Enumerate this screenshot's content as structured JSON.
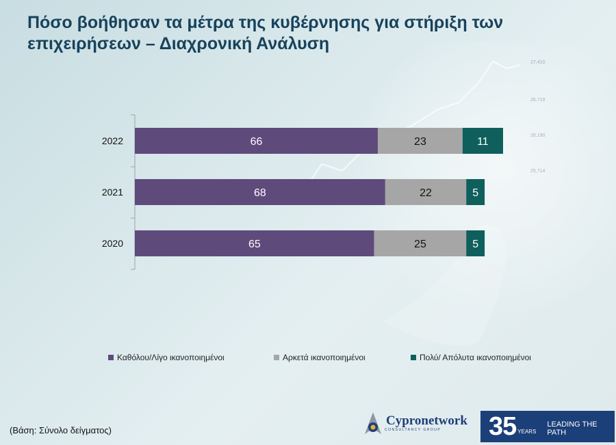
{
  "title": "Πόσο βοήθησαν τα μέτρα της κυβέρνησης για στήριξη των επιχειρήσεων – Διαχρονική Ανάλυση",
  "footnote": "(Βάση: Σύνολο δείγματος)",
  "logo": {
    "name": "Cypronetwork",
    "sub": "CONSULTANCY GROUP"
  },
  "badge": {
    "number": "35",
    "years": "YEARS",
    "tagline": "LEADING THE PATH"
  },
  "background_numbers": [
    "27,410",
    "26,719",
    "26,190",
    "25,714"
  ],
  "colors": {
    "series1": "#5f4a7c",
    "series2": "#a6a6a6",
    "series3": "#0f5f5c",
    "title": "#17425c"
  },
  "chart_data": {
    "type": "bar",
    "orientation": "horizontal",
    "stacked": true,
    "categories": [
      "2022",
      "2021",
      "2020"
    ],
    "series": [
      {
        "name": "Καθόλου/Λίγο ικανοποιημένοι",
        "values": [
          66,
          68,
          65
        ],
        "color": "#5f4a7c"
      },
      {
        "name": "Αρκετά ικανοποιημένοι",
        "values": [
          23,
          22,
          25
        ],
        "color": "#a6a6a6"
      },
      {
        "name": "Πολύ/ Απόλυτα ικανοποιημένοι",
        "values": [
          11,
          5,
          5
        ],
        "color": "#0f5f5c"
      }
    ],
    "xlim": [
      0,
      100
    ],
    "legend": "bottom",
    "grid": false
  }
}
